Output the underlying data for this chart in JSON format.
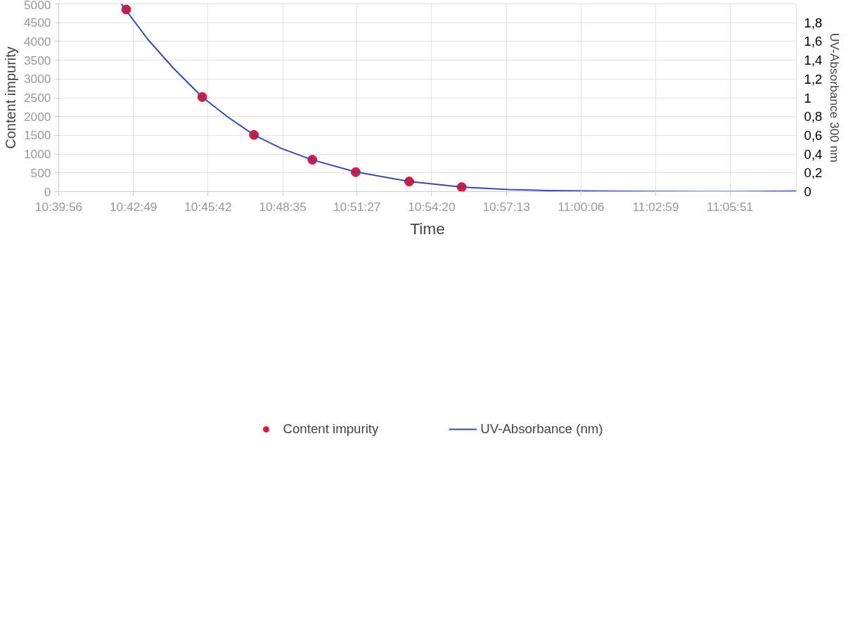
{
  "chart_data": {
    "type": "scatter",
    "xlabel": "Time",
    "ylabel": "Content impurity",
    "y2label": "UV-Absorbance 300 nm",
    "xlim": [
      10.66556,
      11.1402
    ],
    "xticks": [
      {
        "value": 10.66556,
        "label": "10:39:56"
      },
      {
        "value": 10.71361,
        "label": "10:42:49"
      },
      {
        "value": 10.76167,
        "label": "10:45:42"
      },
      {
        "value": 10.80972,
        "label": "10:48:35"
      },
      {
        "value": 10.8575,
        "label": "10:51:27"
      },
      {
        "value": 10.90556,
        "label": "10:54:20"
      },
      {
        "value": 10.95361,
        "label": "10:57:13"
      },
      {
        "value": 11.00167,
        "label": "11:00:06"
      },
      {
        "value": 11.04972,
        "label": "11:02:59"
      },
      {
        "value": 11.0975,
        "label": "11:05:51"
      }
    ],
    "ylim": [
      0,
      5000
    ],
    "yticks": [
      0,
      500,
      1000,
      1500,
      2000,
      2500,
      3000,
      3500,
      4000,
      4500,
      5000
    ],
    "y2lim": [
      0,
      2
    ],
    "y2ticks": [
      0,
      {
        "value": 0.2,
        "label": "0,2"
      },
      {
        "value": 0.4,
        "label": "0,4"
      },
      {
        "value": 0.6,
        "label": "0,6"
      },
      {
        "value": 0.8,
        "label": "0,8"
      },
      1,
      {
        "value": 1.2,
        "label": "1,2"
      },
      {
        "value": 1.4,
        "label": "1,4"
      },
      {
        "value": 1.6,
        "label": "1,6"
      },
      {
        "value": 1.8,
        "label": "1,8"
      }
    ],
    "grid": true,
    "legend": "bottom",
    "series": [
      {
        "name": "Content impurity",
        "marker": "circle",
        "color": "#dc1a3e",
        "x": [
          10.709,
          10.7579,
          10.7912,
          10.8288,
          10.8567,
          10.8911,
          10.9249
        ],
        "values": [
          4850,
          2520,
          1510,
          850,
          520,
          270,
          120
        ]
      },
      {
        "name": "UV-Absorbance (nm)",
        "type": "line",
        "axis": "y2",
        "line_style": "solid",
        "color": "#3a4aa8",
        "x": [
          10.7058,
          10.723,
          10.7391,
          10.7579,
          10.774,
          10.7912,
          10.8089,
          10.8288,
          10.8567,
          10.8911,
          10.9249,
          10.955,
          10.9807,
          11.0038,
          11.0291,
          11.0532,
          11.0774,
          11.1042,
          11.1257,
          11.1402
        ],
        "values": [
          2.0,
          1.62,
          1.32,
          1.008,
          0.8,
          0.604,
          0.46,
          0.338,
          0.21,
          0.108,
          0.048,
          0.022,
          0.012,
          0.007,
          0.003,
          0.001,
          0.0,
          0.0,
          0.003,
          0.005
        ]
      }
    ]
  }
}
